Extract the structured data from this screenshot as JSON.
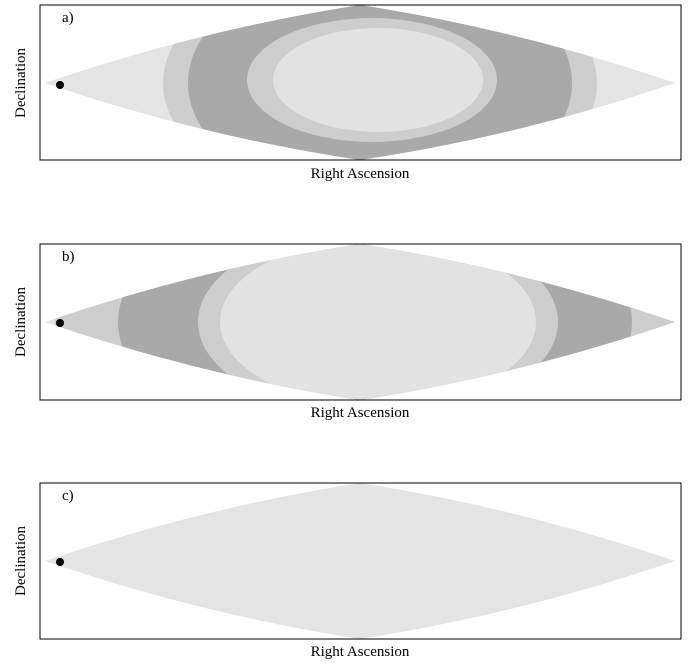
{
  "panels": [
    {
      "label": "a)",
      "x_label": "Right Ascension",
      "y_label": "Declination"
    },
    {
      "label": "b)",
      "x_label": "Right Ascension",
      "y_label": "Declination"
    },
    {
      "label": "c)",
      "x_label": "Right Ascension",
      "y_label": "Declination"
    }
  ]
}
